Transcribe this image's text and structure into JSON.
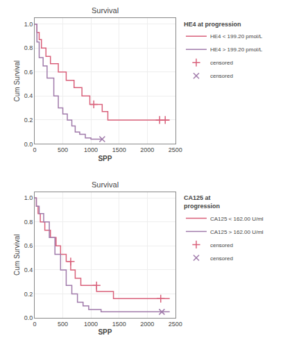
{
  "chart_data": [
    {
      "type": "line",
      "title": "Survival",
      "xlabel": "SPP",
      "ylabel": "Cum Survival",
      "legend_title": "HE4 at progression",
      "grid": true,
      "xlim": [
        0,
        2500
      ],
      "ylim": [
        0.0,
        1.05
      ],
      "xticks": [
        0,
        500,
        1000,
        1500,
        2000,
        2500
      ],
      "yticks": [
        0.0,
        0.2,
        0.4,
        0.6,
        0.8,
        1.0
      ],
      "series": [
        {
          "name": "HE4 < 199.20 pmol/L",
          "color": "#d9607a",
          "type": "step",
          "x": [
            0,
            40,
            40,
            80,
            80,
            120,
            120,
            200,
            200,
            280,
            280,
            420,
            420,
            560,
            560,
            700,
            700,
            840,
            840,
            980,
            980,
            1050,
            1050,
            1200,
            1200,
            1300,
            1300,
            1450,
            1450,
            1550,
            1550,
            1700,
            1700,
            2050,
            2050,
            2220,
            2220,
            2320,
            2320,
            2400
          ],
          "values": [
            1.0,
            1.0,
            0.93,
            0.93,
            0.87,
            0.87,
            0.8,
            0.8,
            0.73,
            0.73,
            0.67,
            0.67,
            0.6,
            0.6,
            0.53,
            0.53,
            0.47,
            0.47,
            0.4,
            0.4,
            0.33,
            0.33,
            0.33,
            0.33,
            0.27,
            0.27,
            0.2,
            0.2,
            0.2,
            0.2,
            0.2,
            0.2,
            0.2,
            0.2,
            0.2,
            0.2,
            0.2,
            0.2,
            0.2,
            0.2
          ]
        },
        {
          "name": "HE4 > 199.20 pmol/L",
          "color": "#a07aaa",
          "type": "step",
          "x": [
            0,
            40,
            40,
            80,
            80,
            150,
            150,
            220,
            220,
            340,
            340,
            420,
            420,
            500,
            500,
            580,
            580,
            660,
            660,
            720,
            720,
            800,
            800,
            900,
            900,
            1000,
            1000,
            1100,
            1100,
            1200,
            1200
          ],
          "values": [
            1.0,
            1.0,
            0.85,
            0.85,
            0.72,
            0.72,
            0.65,
            0.65,
            0.55,
            0.55,
            0.4,
            0.4,
            0.3,
            0.3,
            0.25,
            0.25,
            0.2,
            0.2,
            0.15,
            0.15,
            0.1,
            0.1,
            0.08,
            0.08,
            0.05,
            0.05,
            0.04,
            0.04,
            0.04,
            0.04,
            0.04
          ]
        },
        {
          "name": "censored",
          "color": "#d9607a",
          "type": "scatter",
          "marker": "plus",
          "x": [
            1050,
            2220,
            2320
          ],
          "values": [
            0.33,
            0.2,
            0.2
          ]
        },
        {
          "name": "censored",
          "color": "#a07aaa",
          "type": "scatter",
          "marker": "x",
          "x": [
            1200
          ],
          "values": [
            0.04
          ]
        }
      ]
    },
    {
      "type": "line",
      "title": "Survival",
      "xlabel": "SPP",
      "ylabel": "Cum Survival",
      "legend_title": "CA125 at\nprogression",
      "grid": true,
      "xlim": [
        0,
        2500
      ],
      "ylim": [
        0.0,
        1.05
      ],
      "xticks": [
        0,
        500,
        1000,
        1500,
        2000,
        2500
      ],
      "yticks": [
        0.0,
        0.2,
        0.4,
        0.6,
        0.8,
        1.0
      ],
      "series": [
        {
          "name": "CA125 < 162.00 U/ml",
          "color": "#d9607a",
          "type": "step",
          "x": [
            0,
            30,
            30,
            60,
            60,
            100,
            100,
            180,
            180,
            280,
            280,
            380,
            380,
            460,
            460,
            560,
            560,
            640,
            640,
            720,
            720,
            820,
            820,
            950,
            950,
            1100,
            1100,
            1250,
            1250,
            1400,
            1400,
            1500,
            1500,
            1600,
            1600,
            2000,
            2000,
            2240,
            2240,
            2400
          ],
          "values": [
            1.0,
            1.0,
            0.93,
            0.93,
            0.87,
            0.87,
            0.8,
            0.8,
            0.73,
            0.73,
            0.67,
            0.67,
            0.6,
            0.6,
            0.53,
            0.53,
            0.47,
            0.47,
            0.4,
            0.4,
            0.33,
            0.33,
            0.27,
            0.27,
            0.27,
            0.27,
            0.22,
            0.22,
            0.22,
            0.22,
            0.16,
            0.16,
            0.16,
            0.16,
            0.16,
            0.16,
            0.16,
            0.16,
            0.16,
            0.16
          ]
        },
        {
          "name": "CA125 > 162.00 U/ml",
          "color": "#a07aaa",
          "type": "step",
          "x": [
            0,
            30,
            30,
            80,
            80,
            160,
            160,
            260,
            260,
            360,
            360,
            460,
            460,
            560,
            560,
            660,
            660,
            760,
            760,
            860,
            860,
            960,
            960,
            1060,
            1060,
            1180,
            1180,
            1400,
            1400,
            1540,
            1540,
            2260,
            2260,
            2400
          ],
          "values": [
            1.0,
            1.0,
            0.93,
            0.93,
            0.87,
            0.87,
            0.8,
            0.8,
            0.67,
            0.67,
            0.53,
            0.53,
            0.4,
            0.4,
            0.27,
            0.27,
            0.2,
            0.2,
            0.13,
            0.13,
            0.1,
            0.1,
            0.07,
            0.07,
            0.07,
            0.07,
            0.05,
            0.05,
            0.05,
            0.05,
            0.05,
            0.05,
            0.05,
            0.05
          ]
        },
        {
          "name": "censored",
          "color": "#d9607a",
          "type": "scatter",
          "marker": "plus",
          "x": [
            640,
            1100,
            2240
          ],
          "values": [
            0.47,
            0.27,
            0.16
          ]
        },
        {
          "name": "censored",
          "color": "#a07aaa",
          "type": "scatter",
          "marker": "x",
          "x": [
            2260
          ],
          "values": [
            0.05
          ]
        }
      ]
    }
  ]
}
